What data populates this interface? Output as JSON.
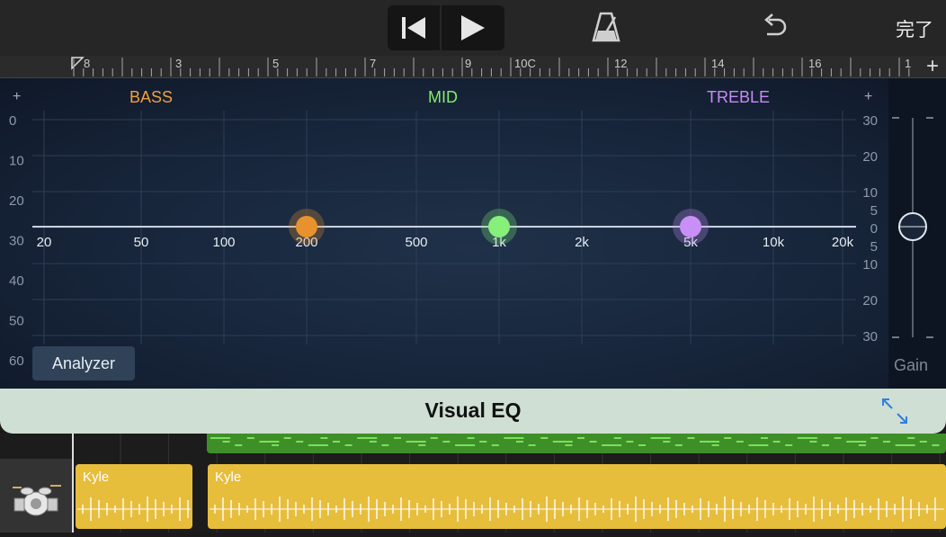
{
  "toolbar": {
    "done_label": "完了"
  },
  "ruler": {
    "marks": [
      "8",
      "3",
      "5",
      "7",
      "9",
      "10C",
      "12",
      "14",
      "16",
      "1"
    ]
  },
  "eq": {
    "bands": {
      "bass": "BASS",
      "mid": "MID",
      "treble": "TREBLE"
    },
    "left_scale": [
      "0",
      "10",
      "20",
      "30",
      "40",
      "50",
      "60"
    ],
    "right_scale": [
      "30",
      "20",
      "10",
      "5",
      "0",
      "5",
      "10",
      "20",
      "30"
    ],
    "freq_labels": [
      "20",
      "50",
      "100",
      "200",
      "500",
      "1k",
      "2k",
      "5k",
      "10k",
      "20k"
    ],
    "nodes": [
      {
        "band": "bass",
        "freq": "200",
        "color": "#e8922e"
      },
      {
        "band": "mid",
        "freq": "1k",
        "color": "#86f07a"
      },
      {
        "band": "treble",
        "freq": "5k",
        "color": "#c890f7"
      }
    ],
    "gain_db": 0,
    "gain_label": "Gain",
    "analyzer_label": "Analyzer",
    "plus_symbol": "+"
  },
  "visual_eq": {
    "title": "Visual EQ"
  },
  "tracks": {
    "clips": [
      {
        "name": "Kyle"
      },
      {
        "name": "Kyle"
      }
    ]
  },
  "colors": {
    "bass": "#f0a040",
    "mid": "#84ec6c",
    "treble": "#c58cf5",
    "clip": "#e7bd3c",
    "midi": "#3f8f28"
  }
}
